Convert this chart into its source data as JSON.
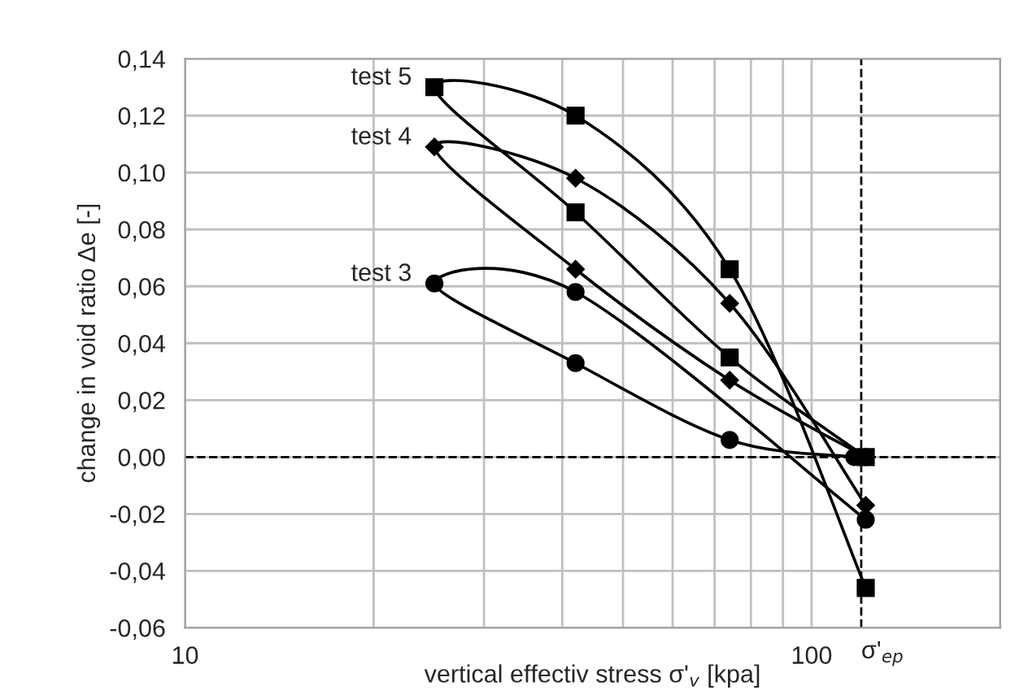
{
  "chart_data": {
    "type": "line",
    "xlabel": "vertical effectiv stress σ'$_{v}$ [kpa]",
    "ylabel": "change in void ratio Δe [-]",
    "log": "x",
    "xlim": [
      10,
      200
    ],
    "xticks": [
      10,
      {
        "value": 20,
        "label": null
      },
      {
        "value": 30,
        "label": null
      },
      {
        "value": 40,
        "label": null
      },
      {
        "value": 50,
        "label": null
      },
      {
        "value": 60,
        "label": null
      },
      {
        "value": 70,
        "label": null
      },
      {
        "value": 80,
        "label": null
      },
      {
        "value": 90,
        "label": null
      },
      100,
      {
        "value": 200,
        "label": null
      }
    ],
    "ylim": [
      -0.06,
      0.14
    ],
    "yticks": [
      {
        "value": -0.06,
        "label": "-0,06"
      },
      {
        "value": -0.04,
        "label": "-0,04"
      },
      {
        "value": -0.02,
        "label": "-0,02"
      },
      {
        "value": 0,
        "label": "0,00"
      },
      {
        "value": 0.02,
        "label": "0,02"
      },
      {
        "value": 0.04,
        "label": "0,04"
      },
      {
        "value": 0.06,
        "label": "0,06"
      },
      {
        "value": 0.08,
        "label": "0,08"
      },
      {
        "value": 0.1,
        "label": "0,10"
      },
      {
        "value": 0.12,
        "label": "0,12"
      },
      {
        "value": 0.14,
        "label": "0,14"
      }
    ],
    "grid": true,
    "legend": false,
    "line_style": "solid",
    "series": [
      {
        "name": "test 5",
        "color": "#000000",
        "marker": "square",
        "x": [
          122,
          74,
          42,
          25,
          42,
          74,
          122
        ],
        "values": [
          0.0,
          0.035,
          0.086,
          0.13,
          0.12,
          0.066,
          -0.046
        ]
      },
      {
        "name": "test 4",
        "color": "#000000",
        "marker": "diamond",
        "x": [
          122,
          74,
          42,
          25,
          42,
          74,
          122
        ],
        "values": [
          0.0,
          0.027,
          0.066,
          0.109,
          0.098,
          0.054,
          -0.017
        ]
      },
      {
        "name": "test 3",
        "color": "#000000",
        "marker": "circle",
        "x": [
          117,
          74,
          42,
          25,
          42,
          74,
          122
        ],
        "values": [
          0.0,
          0.006,
          0.033,
          0.061,
          0.058,
          null,
          -0.022
        ]
      }
    ],
    "ref_lines": [
      {
        "axis": "y",
        "value": 0,
        "label": null,
        "line_style": "dashed",
        "color": "#000000"
      },
      {
        "axis": "x",
        "value": 120,
        "label": "σ'$_{ep}$",
        "line_style": "dashed",
        "color": "#000000"
      }
    ]
  }
}
